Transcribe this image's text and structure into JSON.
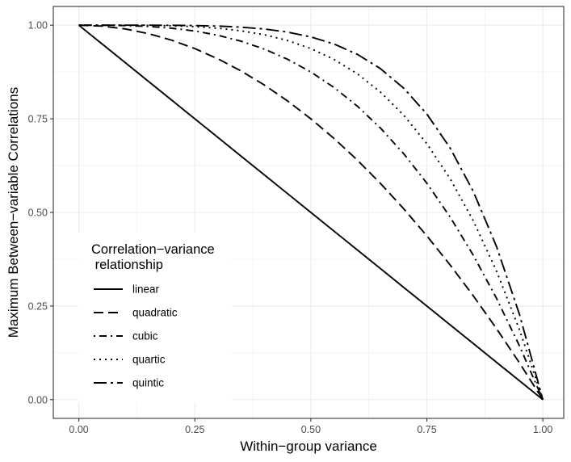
{
  "chart_data": {
    "type": "line",
    "title": "",
    "xlabel": "Within−group variance",
    "ylabel": "Maximum Between−variable Correlations",
    "xlim": [
      -0.055,
      1.045
    ],
    "ylim": [
      -0.05,
      1.05
    ],
    "x_ticks": [
      0,
      0.25,
      0.5,
      0.75,
      1
    ],
    "x_tick_labels": [
      "0.00",
      "0.25",
      "0.50",
      "0.75",
      "1.00"
    ],
    "y_ticks": [
      0,
      0.25,
      0.5,
      0.75,
      1
    ],
    "y_tick_labels": [
      "0.00",
      "0.25",
      "0.50",
      "0.75",
      "1.00"
    ],
    "grid": true,
    "background": "#ffffff",
    "grid_color": "#ebebeb",
    "line_color": "#000000",
    "legend": {
      "title": "Correlation−variance\n relationship",
      "placement": "inside-bottom-left"
    },
    "x": [
      0,
      0.05,
      0.1,
      0.15,
      0.2,
      0.25,
      0.3,
      0.35,
      0.4,
      0.45,
      0.5,
      0.55,
      0.6,
      0.65,
      0.7,
      0.75,
      0.8,
      0.85,
      0.9,
      0.95,
      1
    ],
    "series": [
      {
        "name": "linear",
        "dash": "solid",
        "values": [
          1,
          0.95,
          0.9,
          0.85,
          0.8,
          0.75,
          0.7,
          0.65,
          0.6,
          0.55,
          0.5,
          0.45,
          0.4,
          0.35,
          0.3,
          0.25,
          0.2,
          0.15,
          0.1,
          0.05,
          0
        ]
      },
      {
        "name": "quadratic",
        "dash": "dashed",
        "values": [
          1,
          0.9975,
          0.99,
          0.9775,
          0.96,
          0.9375,
          0.91,
          0.8775,
          0.84,
          0.7975,
          0.75,
          0.6975,
          0.64,
          0.5775,
          0.51,
          0.4375,
          0.36,
          0.2775,
          0.19,
          0.0975,
          0
        ]
      },
      {
        "name": "cubic",
        "dash": "dotdash",
        "values": [
          1,
          0.999875,
          0.999,
          0.996625,
          0.992,
          0.984375,
          0.973,
          0.957125,
          0.936,
          0.908875,
          0.875,
          0.833625,
          0.784,
          0.725375,
          0.657,
          0.578125,
          0.488,
          0.385875,
          0.271,
          0.142625,
          0
        ]
      },
      {
        "name": "quartic",
        "dash": "dotted",
        "values": [
          1,
          0.999994,
          0.9999,
          0.999494,
          0.9984,
          0.996094,
          0.9919,
          0.984994,
          0.9744,
          0.958994,
          0.9375,
          0.908494,
          0.8704,
          0.821494,
          0.7599,
          0.683594,
          0.5904,
          0.477994,
          0.3439,
          0.185494,
          0
        ]
      },
      {
        "name": "quintic",
        "dash": "longdash-dot",
        "values": [
          1,
          1,
          0.99999,
          0.999924,
          0.99968,
          0.999023,
          0.99757,
          0.994748,
          0.98976,
          0.981547,
          0.96875,
          0.949672,
          0.92224,
          0.883971,
          0.83193,
          0.762695,
          0.67232,
          0.556298,
          0.40951,
          0.226219,
          0
        ]
      }
    ]
  }
}
